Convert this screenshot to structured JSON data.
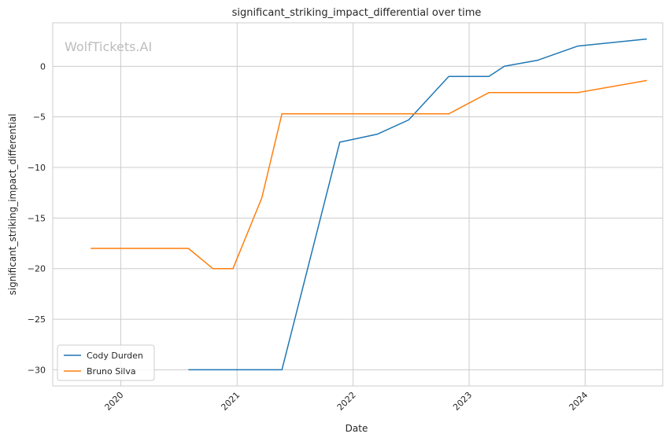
{
  "chart_data": {
    "type": "line",
    "title": "significant_striking_impact_differential over time",
    "xlabel": "Date",
    "ylabel": "significant_striking_impact_differential",
    "watermark": "WolfTickets.AI",
    "x_range": [
      "2019-06-01",
      "2024-09-01"
    ],
    "ylim": [
      -31.6,
      4.3
    ],
    "x_ticks": [
      "2020",
      "2021",
      "2022",
      "2023",
      "2024"
    ],
    "y_ticks": [
      0,
      -5,
      -10,
      -15,
      -20,
      -25,
      -30
    ],
    "grid": true,
    "legend_position": "lower-left",
    "series": [
      {
        "name": "Cody Durden",
        "color": "#1f77b4",
        "points": [
          {
            "x": "2020-08-01",
            "y": -30
          },
          {
            "x": "2021-05-22",
            "y": -30
          },
          {
            "x": "2021-11-20",
            "y": -7.5
          },
          {
            "x": "2022-03-19",
            "y": -6.7
          },
          {
            "x": "2022-06-25",
            "y": -5.3
          },
          {
            "x": "2022-10-29",
            "y": -1.0
          },
          {
            "x": "2023-03-04",
            "y": -1.0
          },
          {
            "x": "2023-04-22",
            "y": 0.0
          },
          {
            "x": "2023-08-05",
            "y": 0.6
          },
          {
            "x": "2023-12-09",
            "y": 2.0
          },
          {
            "x": "2024-07-13",
            "y": 2.7
          }
        ]
      },
      {
        "name": "Bruno Silva",
        "color": "#ff7f0e",
        "points": [
          {
            "x": "2019-09-28",
            "y": -18
          },
          {
            "x": "2020-08-01",
            "y": -18
          },
          {
            "x": "2020-10-17",
            "y": -20
          },
          {
            "x": "2020-12-19",
            "y": -20
          },
          {
            "x": "2021-03-20",
            "y": -13
          },
          {
            "x": "2021-05-22",
            "y": -4.7
          },
          {
            "x": "2022-10-29",
            "y": -4.7
          },
          {
            "x": "2023-03-04",
            "y": -2.6
          },
          {
            "x": "2023-12-09",
            "y": -2.6
          },
          {
            "x": "2024-07-13",
            "y": -1.4
          }
        ]
      }
    ]
  }
}
